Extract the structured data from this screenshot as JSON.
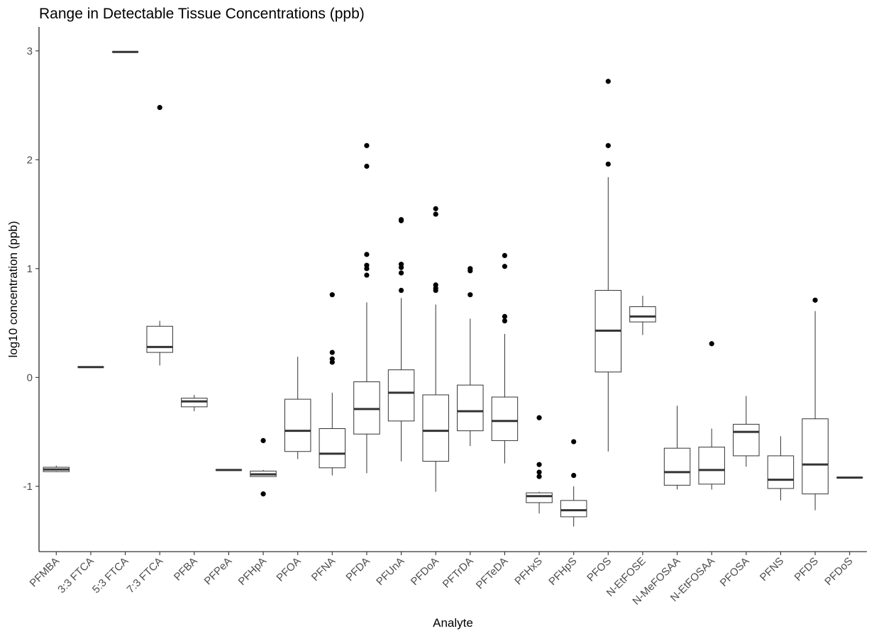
{
  "chart_data": {
    "type": "boxplot",
    "title": "Range in Detectable Tissue Concentrations (ppb)",
    "xlabel": "Analyte",
    "ylabel": "log10 concentration (ppb)",
    "ylim": [
      -1.6,
      3.22
    ],
    "yticks": [
      -1,
      0,
      1,
      2,
      3
    ],
    "grid": false,
    "legend": "none",
    "colors": {
      "line": "#333333",
      "median": "#333333",
      "point": "#000000",
      "fill": "#ffffff",
      "axis": "#000000",
      "tick_label": "#4d4d4d"
    },
    "categories": [
      "PFMBA",
      "3:3 FTCA",
      "5:3 FTCA",
      "7:3 FTCA",
      "PFBA",
      "PFPeA",
      "PFHpA",
      "PFOA",
      "PFNA",
      "PFDA",
      "PFUnA",
      "PFDoA",
      "PFTrDA",
      "PFTeDA",
      "PFHxS",
      "PFHpS",
      "PFOS",
      "N-EtFOSE",
      "N-MeFOSAA",
      "N-EtFOSAA",
      "PFOSA",
      "PFNS",
      "PFDS",
      "PFDoS"
    ],
    "boxes": [
      {
        "label": "PFMBA",
        "lower_whisker": -0.87,
        "q1": -0.865,
        "median": -0.845,
        "q3": -0.825,
        "upper_whisker": -0.81,
        "outliers": []
      },
      {
        "label": "3:3 FTCA",
        "lower_whisker": 0.095,
        "q1": 0.095,
        "median": 0.095,
        "q3": 0.095,
        "upper_whisker": 0.095,
        "outliers": []
      },
      {
        "label": "5:3 FTCA",
        "lower_whisker": 2.99,
        "q1": 2.99,
        "median": 2.99,
        "q3": 2.99,
        "upper_whisker": 2.99,
        "outliers": []
      },
      {
        "label": "7:3 FTCA",
        "lower_whisker": 0.11,
        "q1": 0.23,
        "median": 0.28,
        "q3": 0.47,
        "upper_whisker": 0.52,
        "outliers": [
          2.48
        ]
      },
      {
        "label": "PFBA",
        "lower_whisker": -0.31,
        "q1": -0.27,
        "median": -0.22,
        "q3": -0.19,
        "upper_whisker": -0.16,
        "outliers": []
      },
      {
        "label": "PFPeA",
        "lower_whisker": -0.85,
        "q1": -0.85,
        "median": -0.85,
        "q3": -0.85,
        "upper_whisker": -0.85,
        "outliers": []
      },
      {
        "label": "PFHpA",
        "lower_whisker": -0.91,
        "q1": -0.91,
        "median": -0.89,
        "q3": -0.86,
        "upper_whisker": -0.85,
        "outliers": [
          -0.58,
          -1.07
        ]
      },
      {
        "label": "PFOA",
        "lower_whisker": -0.75,
        "q1": -0.68,
        "median": -0.49,
        "q3": -0.2,
        "upper_whisker": 0.19,
        "outliers": []
      },
      {
        "label": "PFNA",
        "lower_whisker": -0.9,
        "q1": -0.83,
        "median": -0.7,
        "q3": -0.47,
        "upper_whisker": -0.14,
        "outliers": [
          0.76,
          0.23,
          0.17,
          0.14
        ]
      },
      {
        "label": "PFDA",
        "lower_whisker": -0.88,
        "q1": -0.52,
        "median": -0.29,
        "q3": -0.04,
        "upper_whisker": 0.69,
        "outliers": [
          2.13,
          1.94,
          1.13,
          1.03,
          1.0,
          0.94
        ]
      },
      {
        "label": "PFUnA",
        "lower_whisker": -0.77,
        "q1": -0.4,
        "median": -0.14,
        "q3": 0.07,
        "upper_whisker": 0.73,
        "outliers": [
          1.45,
          1.44,
          1.04,
          1.01,
          0.96,
          0.8
        ]
      },
      {
        "label": "PFDoA",
        "lower_whisker": -1.05,
        "q1": -0.77,
        "median": -0.49,
        "q3": -0.16,
        "upper_whisker": 0.67,
        "outliers": [
          1.55,
          1.5,
          0.85,
          0.82,
          0.8
        ]
      },
      {
        "label": "PFTrDA",
        "lower_whisker": -0.63,
        "q1": -0.49,
        "median": -0.31,
        "q3": -0.07,
        "upper_whisker": 0.54,
        "outliers": [
          1.0,
          0.98,
          0.76
        ]
      },
      {
        "label": "PFTeDA",
        "lower_whisker": -0.79,
        "q1": -0.58,
        "median": -0.4,
        "q3": -0.18,
        "upper_whisker": 0.4,
        "outliers": [
          1.12,
          1.02,
          0.56,
          0.52
        ]
      },
      {
        "label": "PFHxS",
        "lower_whisker": -1.25,
        "q1": -1.15,
        "median": -1.09,
        "q3": -1.06,
        "upper_whisker": -1.05,
        "outliers": [
          -0.37,
          -0.8,
          -0.87,
          -0.91
        ]
      },
      {
        "label": "PFHpS",
        "lower_whisker": -1.37,
        "q1": -1.28,
        "median": -1.22,
        "q3": -1.13,
        "upper_whisker": -1.0,
        "outliers": [
          -0.59,
          -0.9
        ]
      },
      {
        "label": "PFOS",
        "lower_whisker": -0.68,
        "q1": 0.05,
        "median": 0.43,
        "q3": 0.8,
        "upper_whisker": 1.84,
        "outliers": [
          2.72,
          2.13,
          1.96
        ]
      },
      {
        "label": "N-EtFOSE",
        "lower_whisker": 0.39,
        "q1": 0.51,
        "median": 0.56,
        "q3": 0.65,
        "upper_whisker": 0.75,
        "outliers": []
      },
      {
        "label": "N-MeFOSAA",
        "lower_whisker": -1.03,
        "q1": -0.99,
        "median": -0.87,
        "q3": -0.65,
        "upper_whisker": -0.26,
        "outliers": []
      },
      {
        "label": "N-EtFOSAA",
        "lower_whisker": -1.03,
        "q1": -0.98,
        "median": -0.85,
        "q3": -0.64,
        "upper_whisker": -0.47,
        "outliers": [
          0.31
        ]
      },
      {
        "label": "PFOSA",
        "lower_whisker": -0.82,
        "q1": -0.72,
        "median": -0.5,
        "q3": -0.43,
        "upper_whisker": -0.17,
        "outliers": []
      },
      {
        "label": "PFNS",
        "lower_whisker": -1.13,
        "q1": -1.02,
        "median": -0.94,
        "q3": -0.72,
        "upper_whisker": -0.54,
        "outliers": []
      },
      {
        "label": "PFDS",
        "lower_whisker": -1.22,
        "q1": -1.07,
        "median": -0.8,
        "q3": -0.38,
        "upper_whisker": 0.61,
        "outliers": [
          0.71
        ]
      },
      {
        "label": "PFDoS",
        "lower_whisker": -0.92,
        "q1": -0.92,
        "median": -0.92,
        "q3": -0.92,
        "upper_whisker": -0.92,
        "outliers": []
      }
    ]
  }
}
